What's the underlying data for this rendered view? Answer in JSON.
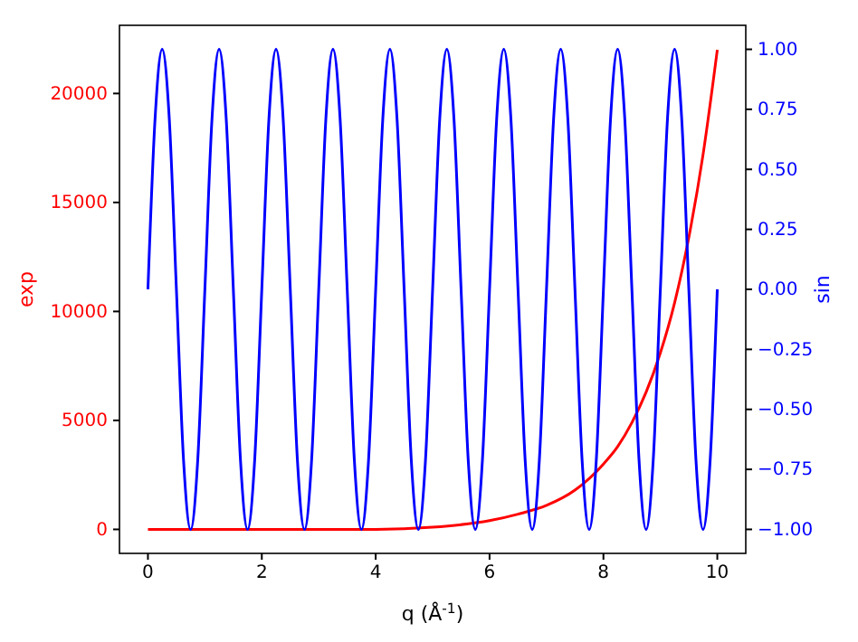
{
  "chart_data": {
    "type": "line",
    "xlabel": "q (Å$^{-1}$)",
    "ylabel": "exp",
    "y2label": "sin",
    "xlim": [
      -0.5,
      10.5
    ],
    "xticks": [
      0,
      2,
      4,
      6,
      8,
      10
    ],
    "ylim": [
      -1101,
      23127
    ],
    "yticks": [
      0,
      5000,
      10000,
      15000,
      20000
    ],
    "y2lim": [
      -1.1,
      1.1
    ],
    "y2ticks": [
      {
        "value": -1,
        "label": "−1.00"
      },
      {
        "value": -0.75,
        "label": "−0.75"
      },
      {
        "value": -0.5,
        "label": "−0.50"
      },
      {
        "value": -0.25,
        "label": "−0.25"
      },
      {
        "value": 0,
        "label": "0.00"
      },
      {
        "value": 0.25,
        "label": "0.25"
      },
      {
        "value": 0.5,
        "label": "0.50"
      },
      {
        "value": 0.75,
        "label": "0.75"
      },
      {
        "value": 1,
        "label": "1.00"
      }
    ],
    "grid": false,
    "line_style": "solid",
    "marker": "none",
    "series": [
      {
        "color": "#ff0000",
        "x": [
          0,
          1,
          2,
          3,
          4,
          5,
          6,
          6.5,
          7,
          7.5,
          8,
          8.25,
          8.5,
          8.75,
          9,
          9.25,
          9.5,
          9.75,
          10
        ],
        "values": [
          0,
          0,
          0,
          0,
          0,
          100,
          400,
          700,
          1100,
          1800,
          3000,
          3800,
          4900,
          6300,
          8100,
          10400,
          13400,
          17200,
          22000
        ]
      },
      {
        "color": "#0000ff",
        "axis": "y2",
        "x": [
          0,
          0.125,
          0.25,
          0.375,
          0.5,
          0.625,
          0.75,
          0.875,
          1,
          1.125,
          1.25,
          1.375,
          1.5,
          1.625,
          1.75,
          1.875,
          2,
          2.125,
          2.25,
          2.375,
          2.5,
          2.625,
          2.75,
          2.875,
          3,
          3.125,
          3.25,
          3.375,
          3.5,
          3.625,
          3.75,
          3.875,
          4,
          4.125,
          4.25,
          4.375,
          4.5,
          4.625,
          4.75,
          4.875,
          5,
          5.125,
          5.25,
          5.375,
          5.5,
          5.625,
          5.75,
          5.875,
          6,
          6.125,
          6.25,
          6.375,
          6.5,
          6.625,
          6.75,
          6.875,
          7,
          7.125,
          7.25,
          7.375,
          7.5,
          7.625,
          7.75,
          7.875,
          8,
          8.125,
          8.25,
          8.375,
          8.5,
          8.625,
          8.75,
          8.875,
          9,
          9.125,
          9.25,
          9.375,
          9.5,
          9.625,
          9.75,
          9.875,
          10
        ],
        "values": [
          0,
          0.71,
          1,
          0.71,
          0,
          -0.71,
          -1,
          -0.71,
          0,
          0.71,
          1,
          0.71,
          0,
          -0.71,
          -1,
          -0.71,
          0,
          0.71,
          1,
          0.71,
          0,
          -0.71,
          -1,
          -0.71,
          0,
          0.71,
          1,
          0.71,
          0,
          -0.71,
          -1,
          -0.71,
          0,
          0.71,
          1,
          0.71,
          0,
          -0.71,
          -1,
          -0.71,
          0,
          0.71,
          1,
          0.71,
          0,
          -0.71,
          -1,
          -0.71,
          0,
          0.71,
          1,
          0.71,
          0,
          -0.71,
          -1,
          -0.71,
          0,
          0.71,
          1,
          0.71,
          0,
          -0.71,
          -1,
          -0.71,
          0,
          0.71,
          1,
          0.71,
          0,
          -0.71,
          -1,
          -0.71,
          0,
          0.71,
          1,
          0.71,
          0,
          -0.71,
          -1,
          -0.71,
          0
        ]
      }
    ]
  }
}
